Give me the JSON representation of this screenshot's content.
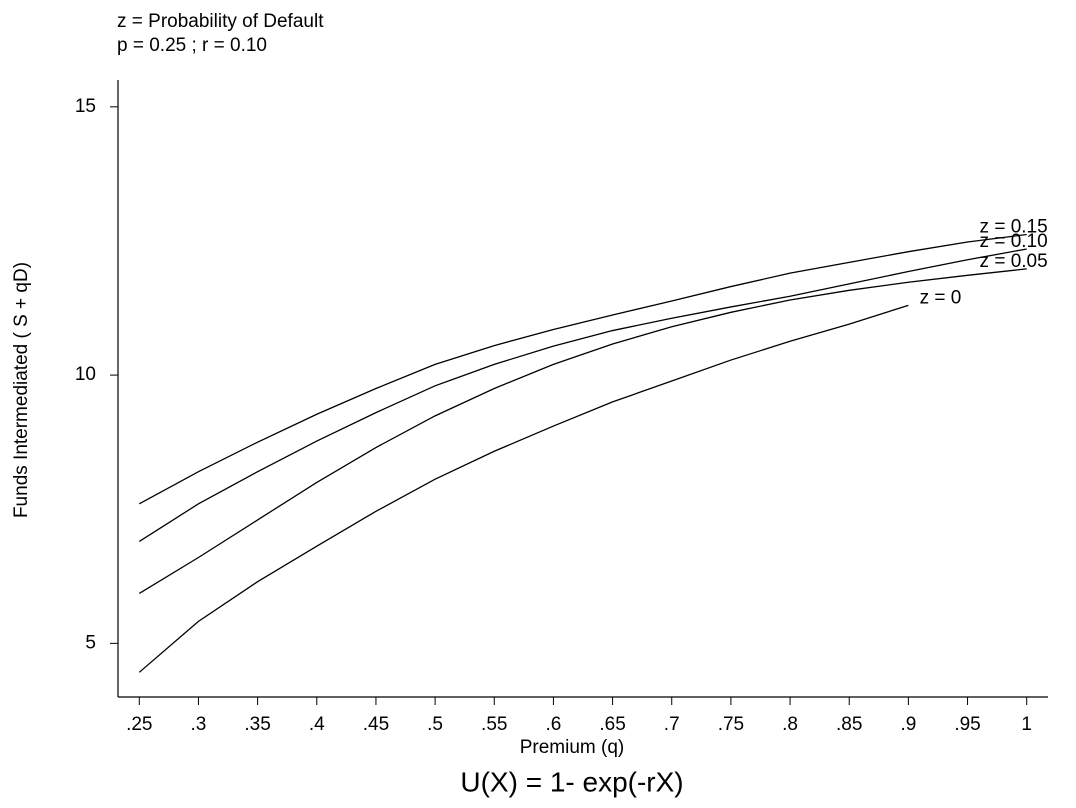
{
  "chart_data": {
    "type": "line",
    "title": "z = Probability of Default",
    "subtitle": "p = 0.25 ; r = 0.10",
    "x_label": "Premium (q)",
    "y_label": "Funds Intermediated ( S + qD)",
    "caption": "U(X) = 1- exp(-rX)",
    "x": [
      0.25,
      0.3,
      0.35,
      0.4,
      0.45,
      0.5,
      0.55,
      0.6,
      0.65,
      0.7,
      0.75,
      0.8,
      0.85,
      0.9,
      0.95,
      1.0
    ],
    "series": [
      {
        "name": "z = 0.15",
        "color": "#000000",
        "values": [
          7.6,
          8.2,
          8.75,
          9.27,
          9.75,
          10.2,
          10.55,
          10.85,
          11.12,
          11.38,
          11.65,
          11.9,
          12.1,
          12.3,
          12.48,
          12.62
        ]
      },
      {
        "name": "z = 0.10",
        "color": "#000000",
        "values": [
          6.9,
          7.6,
          8.2,
          8.77,
          9.3,
          9.8,
          10.2,
          10.54,
          10.83,
          11.06,
          11.27,
          11.47,
          11.7,
          11.93,
          12.15,
          12.35
        ]
      },
      {
        "name": "z = 0.05",
        "color": "#000000",
        "values": [
          5.93,
          6.6,
          7.3,
          8.0,
          8.65,
          9.24,
          9.75,
          10.2,
          10.58,
          10.9,
          11.17,
          11.4,
          11.58,
          11.73,
          11.86,
          11.98
        ]
      },
      {
        "name": "z = 0",
        "color": "#000000",
        "values": [
          4.46,
          5.41,
          6.15,
          6.81,
          7.46,
          8.06,
          8.58,
          9.05,
          9.5,
          9.89,
          10.28,
          10.63,
          10.95,
          11.3,
          null,
          null
        ]
      }
    ],
    "xlim": [
      0.232,
      1.018
    ],
    "ylim": [
      4,
      15.5
    ],
    "xticks": [
      {
        "value": 0.25,
        "label": ".25"
      },
      {
        "value": 0.3,
        "label": ".3"
      },
      {
        "value": 0.35,
        "label": ".35"
      },
      {
        "value": 0.4,
        "label": ".4"
      },
      {
        "value": 0.45,
        "label": ".45"
      },
      {
        "value": 0.5,
        "label": ".5"
      },
      {
        "value": 0.55,
        "label": ".55"
      },
      {
        "value": 0.6,
        "label": ".6"
      },
      {
        "value": 0.65,
        "label": ".65"
      },
      {
        "value": 0.7,
        "label": ".7"
      },
      {
        "value": 0.75,
        "label": ".75"
      },
      {
        "value": 0.8,
        "label": ".8"
      },
      {
        "value": 0.85,
        "label": ".85"
      },
      {
        "value": 0.9,
        "label": ".9"
      },
      {
        "value": 0.95,
        "label": ".95"
      },
      1
    ],
    "yticks": [
      5,
      10,
      15
    ],
    "grid": false
  }
}
